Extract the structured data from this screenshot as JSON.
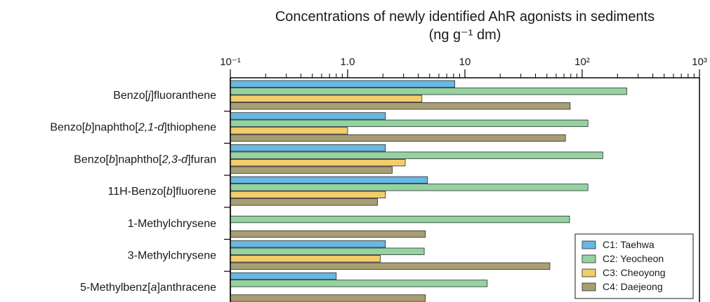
{
  "chart_data": {
    "type": "bar",
    "orientation": "horizontal",
    "title": "Concentrations of newly identified AhR agonists in sediments",
    "subtitle": "(ng g⁻¹ dm)",
    "xscale": "log",
    "xlim": [
      0.1,
      1000
    ],
    "xticks": [
      {
        "value": 0.1,
        "label": "10⁻¹"
      },
      {
        "value": 1,
        "label": "1.0"
      },
      {
        "value": 10,
        "label": "10"
      },
      {
        "value": 100,
        "label": "10²"
      },
      {
        "value": 1000,
        "label": "10³"
      }
    ],
    "axis_position": "top",
    "legend_position": "bottom-right",
    "grid": false,
    "categories": [
      [
        {
          "t": "Benzo["
        },
        {
          "t": "j",
          "i": true
        },
        {
          "t": "]fluoranthene"
        }
      ],
      [
        {
          "t": "Benzo["
        },
        {
          "t": "b",
          "i": true
        },
        {
          "t": "]naphtho["
        },
        {
          "t": "2,1-d",
          "i": true
        },
        {
          "t": "]thiophene"
        }
      ],
      [
        {
          "t": "Benzo["
        },
        {
          "t": "b",
          "i": true
        },
        {
          "t": "]naphtho["
        },
        {
          "t": "2,3-d",
          "i": true
        },
        {
          "t": "]furan"
        }
      ],
      [
        {
          "t": "11H-Benzo["
        },
        {
          "t": "b",
          "i": true
        },
        {
          "t": "]fluorene"
        }
      ],
      [
        {
          "t": "1-Methylchrysene"
        }
      ],
      [
        {
          "t": "3-Methylchrysene"
        }
      ],
      [
        {
          "t": "5-Methylbenz["
        },
        {
          "t": "a",
          "i": true
        },
        {
          "t": "]anthracene"
        }
      ]
    ],
    "series": [
      {
        "name": "C1: Taehwa",
        "color": "#67b8e3",
        "values": [
          8.2,
          2.1,
          2.1,
          4.8,
          null,
          2.1,
          0.8
        ]
      },
      {
        "name": "C2: Yeocheon",
        "color": "#94d3a0",
        "values": [
          240,
          112,
          150,
          112,
          78,
          4.5,
          15.5
        ]
      },
      {
        "name": "C3: Cheoyong",
        "color": "#f3cd6b",
        "values": [
          4.3,
          1.0,
          3.1,
          2.1,
          null,
          1.9,
          null
        ]
      },
      {
        "name": "C4: Daejeong",
        "color": "#a99d72",
        "values": [
          79,
          72,
          2.4,
          1.8,
          4.6,
          53,
          4.6
        ]
      }
    ]
  }
}
